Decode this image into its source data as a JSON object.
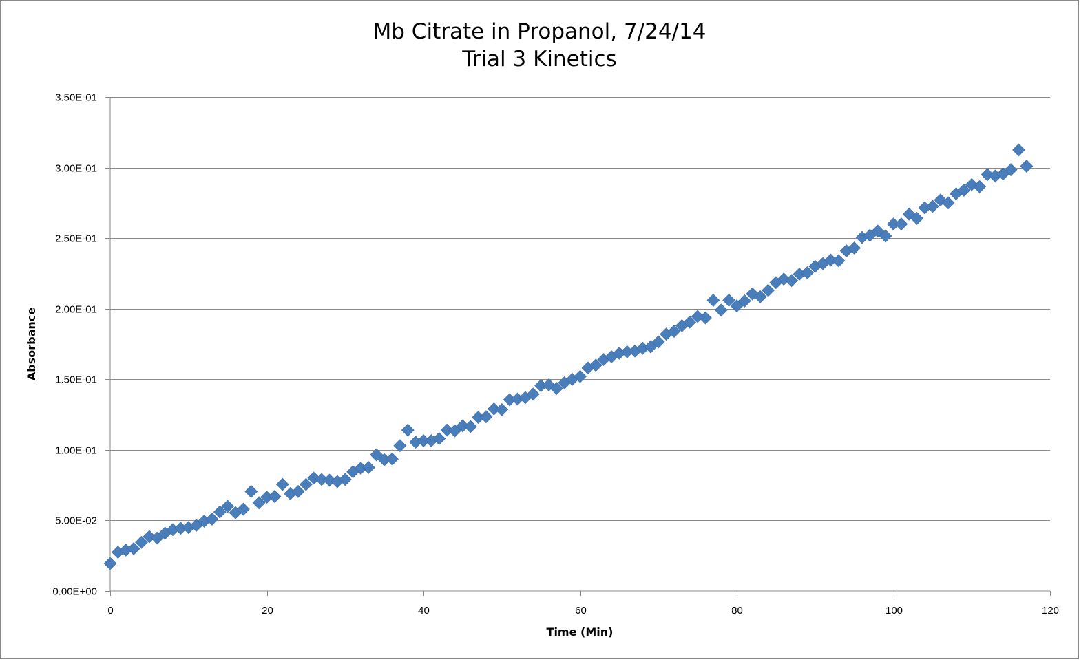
{
  "chart_data": {
    "type": "scatter",
    "title_line1": "Mb Citrate in Propanol, 7/24/14",
    "title_line2": "Trial 3 Kinetics",
    "xlabel": "Time (Min)",
    "ylabel": "Absorbance",
    "xlim": [
      0,
      120
    ],
    "ylim": [
      0,
      0.35
    ],
    "xticks": [
      0,
      20,
      40,
      60,
      80,
      100,
      120
    ],
    "xtick_labels": [
      "0",
      "20",
      "40",
      "60",
      "80",
      "100",
      "120"
    ],
    "yticks": [
      0,
      0.05,
      0.1,
      0.15,
      0.2,
      0.25,
      0.3,
      0.35
    ],
    "ytick_labels": [
      "0.00E+00",
      "5.00E-02",
      "1.00E-01",
      "1.50E-01",
      "2.00E-01",
      "2.50E-01",
      "3.00E-01",
      "3.50E-01"
    ],
    "grid": true,
    "marker": "diamond",
    "marker_color": "#4a7ebb",
    "series": [
      {
        "name": "Absorbance",
        "x": [
          0,
          1,
          2,
          3,
          4,
          5,
          6,
          7,
          8,
          9,
          10,
          11,
          12,
          13,
          14,
          15,
          16,
          17,
          18,
          19,
          20,
          21,
          22,
          23,
          24,
          25,
          26,
          27,
          28,
          29,
          30,
          31,
          32,
          33,
          34,
          35,
          36,
          37,
          38,
          39,
          40,
          41,
          42,
          43,
          44,
          45,
          46,
          47,
          48,
          49,
          50,
          51,
          52,
          53,
          54,
          55,
          56,
          57,
          58,
          59,
          60,
          61,
          62,
          63,
          64,
          65,
          66,
          67,
          68,
          69,
          70,
          71,
          72,
          73,
          74,
          75,
          76,
          77,
          78,
          79,
          80,
          81,
          82,
          83,
          84,
          85,
          86,
          87,
          88,
          89,
          90,
          91,
          92,
          93,
          94,
          95,
          96,
          97,
          98,
          99,
          100,
          101,
          102,
          103,
          104,
          105,
          106,
          107,
          108,
          109,
          110,
          111,
          112,
          113,
          114,
          115,
          116,
          117
        ],
        "y": [
          0.0195,
          0.0275,
          0.029,
          0.03,
          0.0345,
          0.0385,
          0.0375,
          0.041,
          0.0435,
          0.0445,
          0.045,
          0.0465,
          0.0495,
          0.051,
          0.056,
          0.06,
          0.0555,
          0.058,
          0.0705,
          0.0625,
          0.0665,
          0.067,
          0.0755,
          0.069,
          0.0705,
          0.0755,
          0.08,
          0.079,
          0.0785,
          0.0775,
          0.079,
          0.0845,
          0.087,
          0.0875,
          0.0965,
          0.093,
          0.0935,
          0.103,
          0.114,
          0.1055,
          0.1065,
          0.1065,
          0.108,
          0.114,
          0.1135,
          0.117,
          0.1165,
          0.123,
          0.1235,
          0.129,
          0.1285,
          0.1355,
          0.136,
          0.137,
          0.1395,
          0.1455,
          0.146,
          0.1435,
          0.1475,
          0.15,
          0.152,
          0.158,
          0.16,
          0.164,
          0.166,
          0.1685,
          0.1695,
          0.17,
          0.172,
          0.173,
          0.1765,
          0.182,
          0.184,
          0.188,
          0.1905,
          0.1945,
          0.1935,
          0.206,
          0.199,
          0.206,
          0.202,
          0.2055,
          0.2105,
          0.2085,
          0.213,
          0.2185,
          0.221,
          0.22,
          0.2245,
          0.2255,
          0.23,
          0.232,
          0.2345,
          0.234,
          0.241,
          0.243,
          0.2505,
          0.252,
          0.255,
          0.2515,
          0.26,
          0.26,
          0.267,
          0.264,
          0.2715,
          0.2725,
          0.277,
          0.275,
          0.2815,
          0.284,
          0.288,
          0.2865,
          0.295,
          0.294,
          0.2955,
          0.2985,
          0.3125,
          0.301
        ]
      }
    ]
  }
}
